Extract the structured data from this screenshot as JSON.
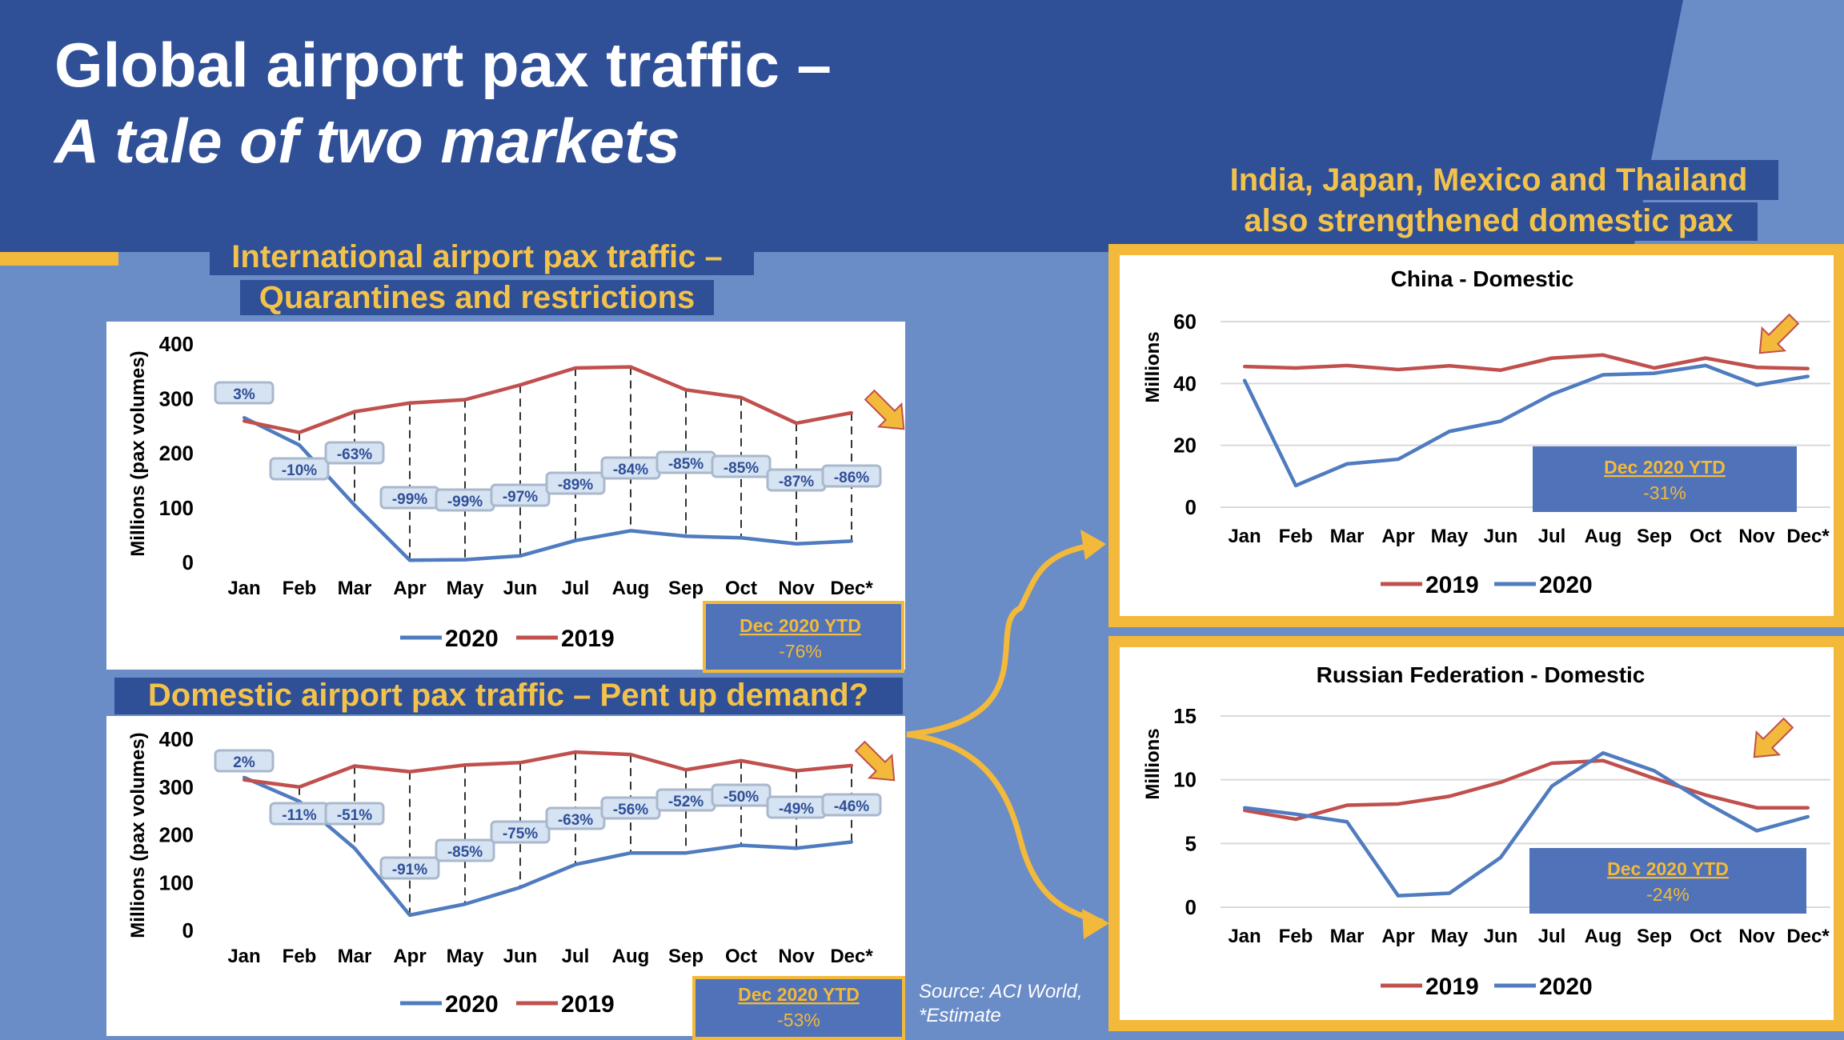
{
  "title": {
    "line1": "Global airport pax traffic –",
    "line2": "A tale of two markets"
  },
  "colors": {
    "banner": "#2f4f97",
    "background": "#6a8cc7",
    "gold": "#f3b93a",
    "heading_text": "#f3c24b",
    "line_2019": "#c0504d",
    "line_2020": "#4f7bbf",
    "ytd_box": "#4f72b8"
  },
  "source_note": {
    "line1": "Source: ACI World,",
    "line2": "*Estimate"
  },
  "side_heading": {
    "line1": "India, Japan, Mexico and Thailand",
    "line2": "also strengthened domestic pax"
  },
  "chart_data": [
    {
      "id": "international",
      "type": "line",
      "heading": {
        "line1": "International airport pax traffic –",
        "line2": "Quarantines and restrictions"
      },
      "ylabel": "Millions (pax volumes)",
      "categories": [
        "Jan",
        "Feb",
        "Mar",
        "Apr",
        "May",
        "Jun",
        "Jul",
        "Aug",
        "Sep",
        "Oct",
        "Nov",
        "Dec*"
      ],
      "ylim": [
        0,
        400
      ],
      "yticks": [
        0,
        100,
        200,
        300,
        400
      ],
      "series": [
        {
          "name": "2020",
          "values": [
            265,
            215,
            105,
            4,
            5,
            12,
            40,
            58,
            48,
            45,
            34,
            39
          ]
        },
        {
          "name": "2019",
          "values": [
            259,
            238,
            276,
            292,
            298,
            325,
            356,
            358,
            316,
            302,
            255,
            274
          ]
        }
      ],
      "pct_labels": [
        "3%",
        "-10%",
        "-63%",
        "-99%",
        "-99%",
        "-97%",
        "-89%",
        "-84%",
        "-85%",
        "-85%",
        "-87%",
        "-86%"
      ],
      "dashed_drops": true,
      "legend": "bottom",
      "ytd": {
        "label": "Dec 2020 YTD",
        "value": "-76%"
      }
    },
    {
      "id": "domestic",
      "type": "line",
      "heading": {
        "line1": "Domestic airport pax traffic – Pent up demand?"
      },
      "ylabel": "Millions (pax volumes)",
      "categories": [
        "Jan",
        "Feb",
        "Mar",
        "Apr",
        "May",
        "Jun",
        "Jul",
        "Aug",
        "Sep",
        "Oct",
        "Nov",
        "Dec*"
      ],
      "ylim": [
        0,
        400
      ],
      "yticks": [
        0,
        100,
        200,
        300,
        400
      ],
      "series": [
        {
          "name": "2020",
          "values": [
            320,
            270,
            172,
            32,
            55,
            90,
            138,
            162,
            162,
            178,
            172,
            185
          ]
        },
        {
          "name": "2019",
          "values": [
            315,
            300,
            344,
            332,
            346,
            351,
            373,
            368,
            336,
            355,
            334,
            345
          ]
        }
      ],
      "pct_labels": [
        "2%",
        "-11%",
        "-51%",
        "-91%",
        "-85%",
        "-75%",
        "-63%",
        "-56%",
        "-52%",
        "-50%",
        "-49%",
        "-46%"
      ],
      "dashed_drops": true,
      "legend": "bottom",
      "ytd": {
        "label": "Dec 2020 YTD",
        "value": "-53%"
      }
    },
    {
      "id": "china",
      "type": "line",
      "title": "China - Domestic",
      "ylabel": "Millions",
      "categories": [
        "Jan",
        "Feb",
        "Mar",
        "Apr",
        "May",
        "Jun",
        "Jul",
        "Aug",
        "Sep",
        "Oct",
        "Nov",
        "Dec*"
      ],
      "ylim": [
        0,
        60
      ],
      "yticks": [
        0,
        20,
        40,
        60
      ],
      "series": [
        {
          "name": "2019",
          "values": [
            45.5,
            45,
            45.8,
            44.5,
            45.7,
            44.3,
            48.2,
            49.2,
            45,
            48.2,
            45.2,
            44.8
          ]
        },
        {
          "name": "2020",
          "values": [
            41,
            7,
            14,
            15.5,
            24.5,
            27.8,
            36.5,
            42.8,
            43.3,
            45.8,
            39.5,
            42.3
          ]
        }
      ],
      "legend": "bottom",
      "ytd": {
        "label": "Dec 2020 YTD",
        "value": "-31%"
      }
    },
    {
      "id": "russia",
      "type": "line",
      "title": "Russian Federation - Domestic",
      "ylabel": "Millions",
      "categories": [
        "Jan",
        "Feb",
        "Mar",
        "Apr",
        "May",
        "Jun",
        "Jul",
        "Aug",
        "Sep",
        "Oct",
        "Nov",
        "Dec*"
      ],
      "ylim": [
        0,
        15
      ],
      "yticks": [
        0,
        5,
        10,
        15
      ],
      "series": [
        {
          "name": "2019",
          "values": [
            7.6,
            6.9,
            8,
            8.1,
            8.7,
            9.8,
            11.3,
            11.5,
            10.1,
            8.8,
            7.8,
            7.8
          ]
        },
        {
          "name": "2020",
          "values": [
            7.8,
            7.3,
            6.7,
            0.9,
            1.1,
            3.9,
            9.5,
            12.1,
            10.7,
            8.2,
            6,
            7.1
          ]
        }
      ],
      "legend": "bottom",
      "ytd": {
        "label": "Dec 2020 YTD",
        "value": "-24%"
      }
    }
  ]
}
